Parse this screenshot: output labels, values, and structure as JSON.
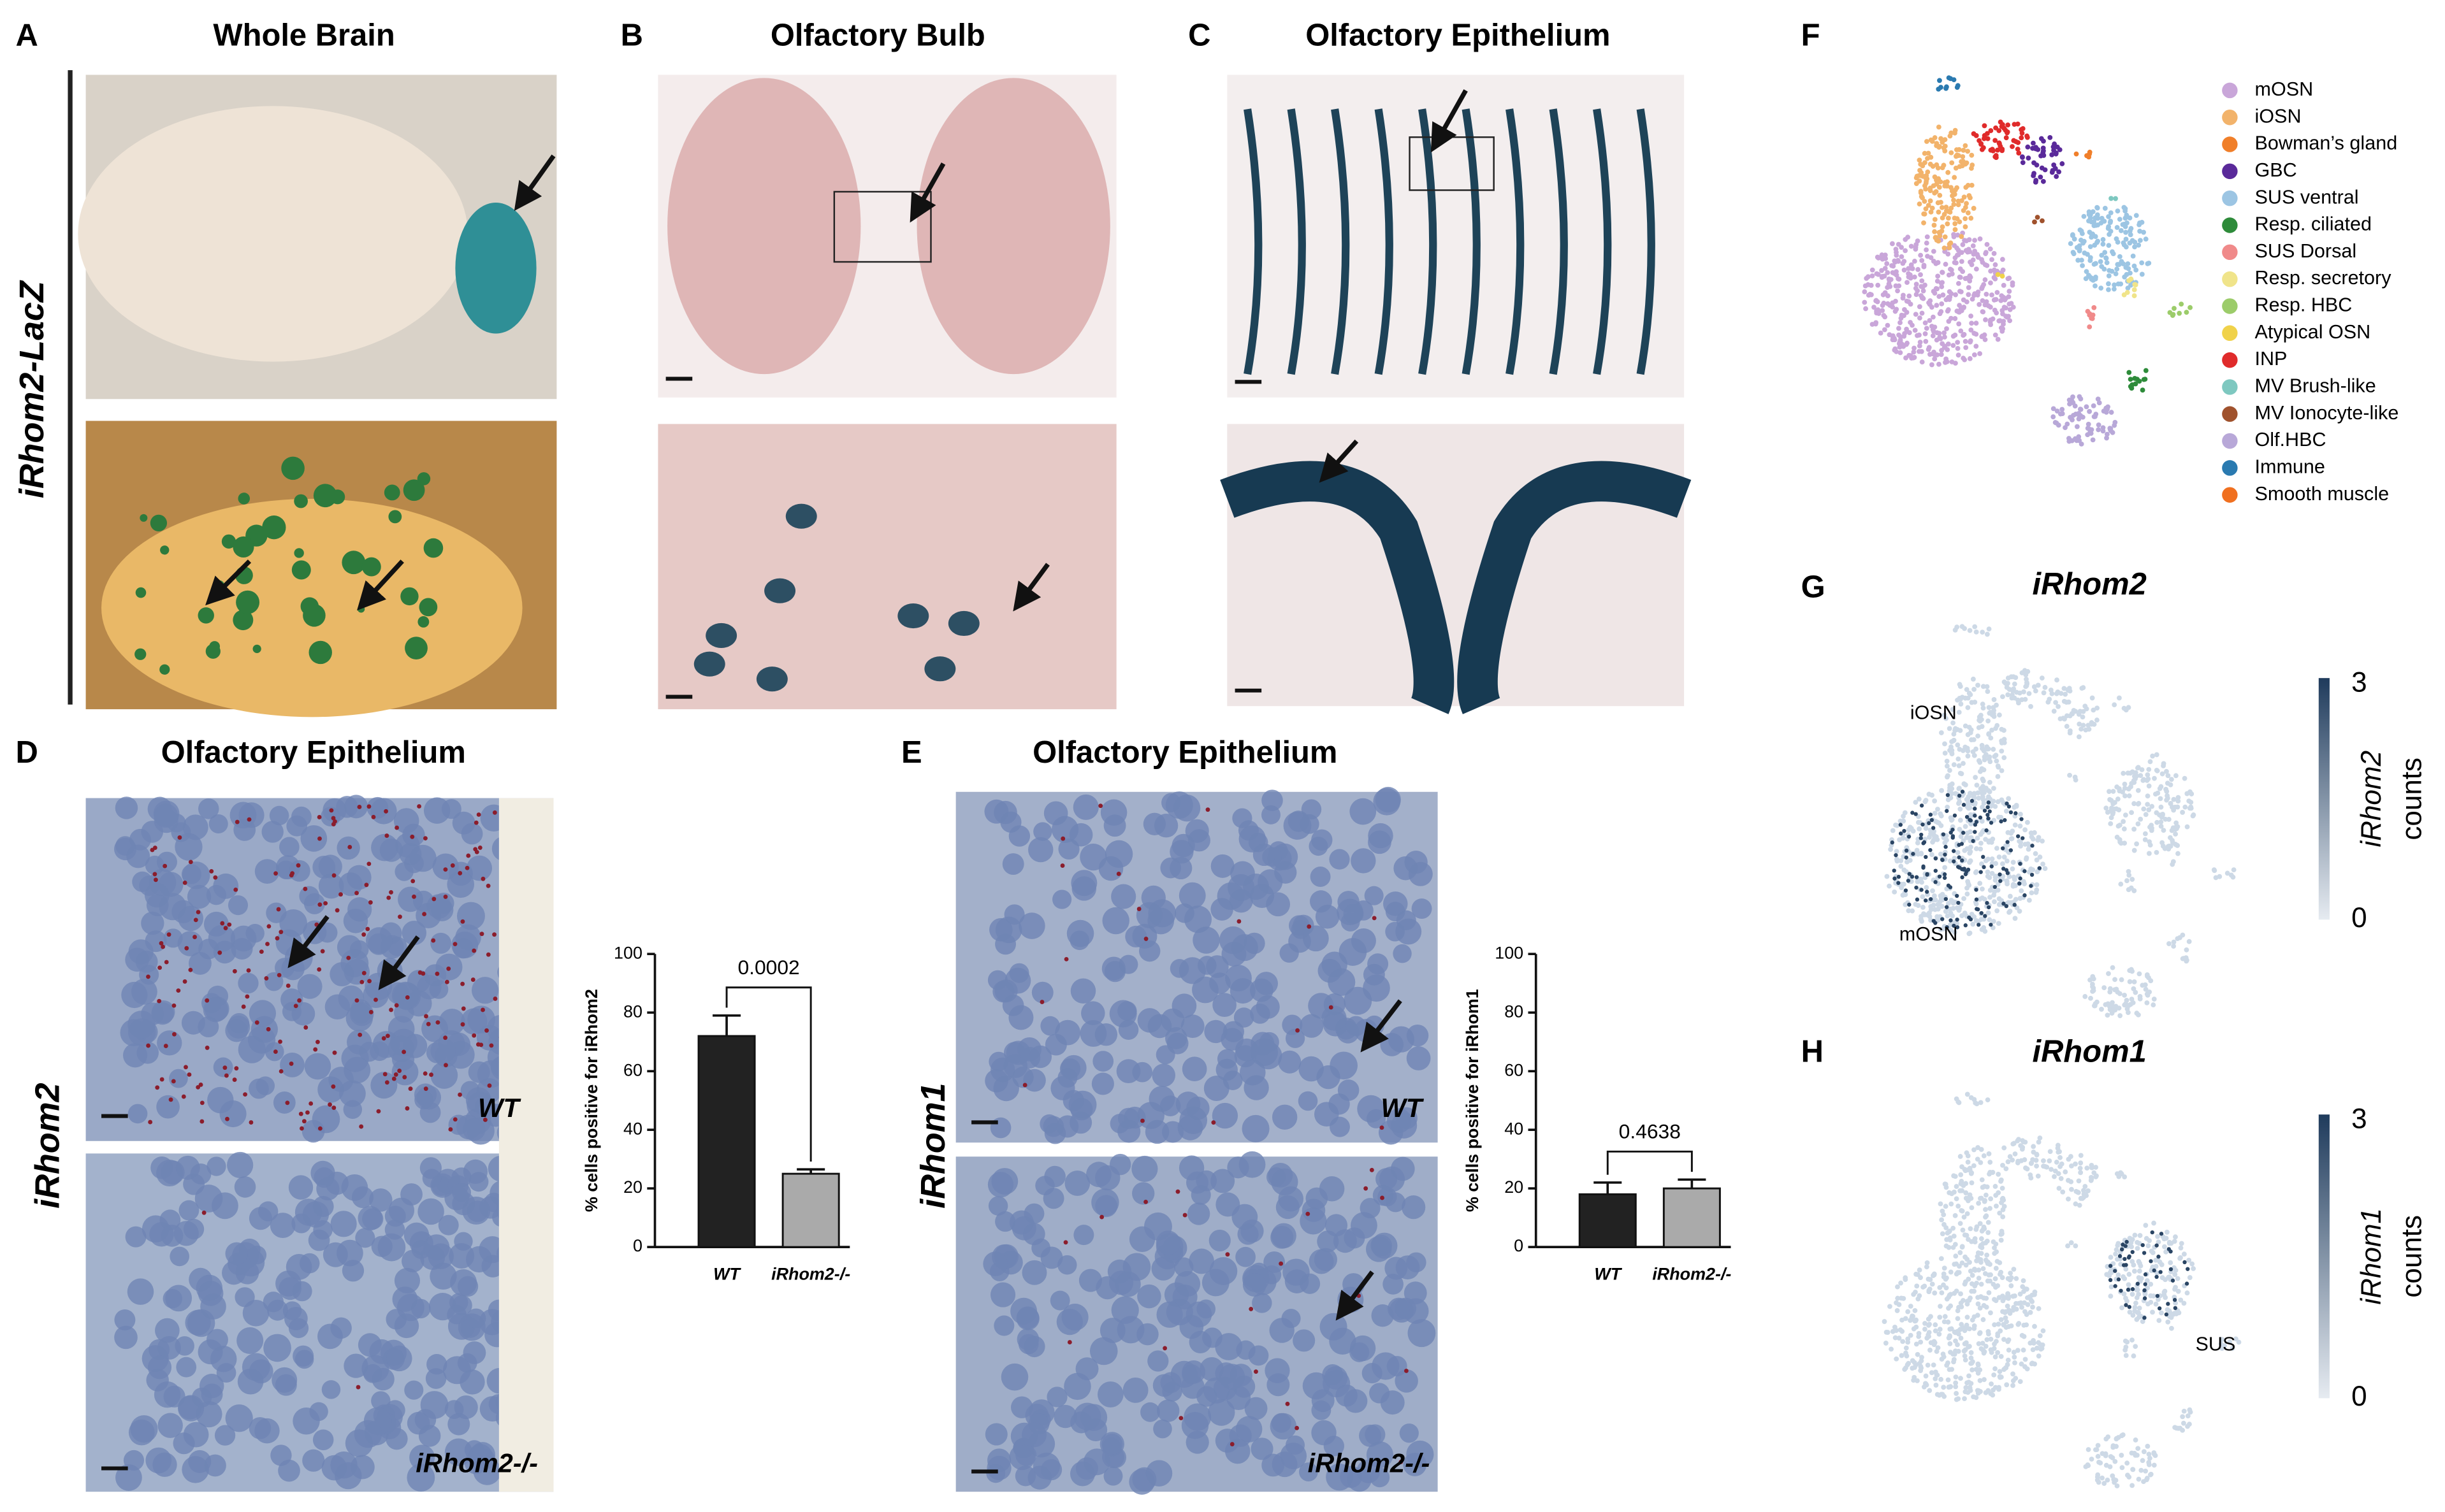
{
  "panel_labels": [
    "A",
    "B",
    "C",
    "D",
    "E",
    "F",
    "G",
    "H"
  ],
  "titles": {
    "A": "Whole Brain",
    "B": "Olfactory Bulb",
    "C": "Olfactory Epithelium",
    "D": "Olfactory Epithelium",
    "E": "Olfactory Epithelium",
    "G": "iRhom2",
    "H": "iRhom1"
  },
  "side_labels": [
    "iRhom2-LacZ",
    "iRhom2",
    "iRhom1"
  ],
  "image_labels": [
    "WT",
    "iRhom2-/-",
    "WT",
    "iRhom2-/-"
  ],
  "legend": [
    {
      "name": "mOSN",
      "color": "#c9a6d9"
    },
    {
      "name": "iOSN",
      "color": "#f2b36b"
    },
    {
      "name": "Bowman’s gland",
      "color": "#f07f2a"
    },
    {
      "name": "GBC",
      "color": "#5a2a9a"
    },
    {
      "name": "SUS ventral",
      "color": "#9cc5e3"
    },
    {
      "name": "Resp. ciliated",
      "color": "#2e8b3a"
    },
    {
      "name": "SUS Dorsal",
      "color": "#f08a8a"
    },
    {
      "name": "Resp. secretory",
      "color": "#f0e48a"
    },
    {
      "name": "Resp. HBC",
      "color": "#9ccc6a"
    },
    {
      "name": "Atypical OSN",
      "color": "#f0d24a"
    },
    {
      "name": "INP",
      "color": "#e02b2b"
    },
    {
      "name": "MV Brush-like",
      "color": "#7ec8c0"
    },
    {
      "name": "MV Ionocyte-like",
      "color": "#a0522d"
    },
    {
      "name": "Olf.HBC",
      "color": "#b8a8d8"
    },
    {
      "name": "Immune",
      "color": "#2a7ab0"
    },
    {
      "name": "Smooth muscle",
      "color": "#f07020"
    }
  ],
  "umap_labels": [
    "iOSN",
    "mOSN",
    "SUS"
  ],
  "colorbars": [
    {
      "max": "3",
      "min": "0",
      "gene": "iRhom2",
      "unit": "counts"
    },
    {
      "max": "3",
      "min": "0",
      "gene": "iRhom1",
      "unit": "counts"
    }
  ],
  "chart_data": [
    {
      "type": "bar",
      "ylabel": "% cells positive for iRhom2",
      "categories": [
        "WT",
        "iRhom2-/-"
      ],
      "values": [
        72,
        25
      ],
      "errors": [
        7,
        1.5
      ],
      "colors": [
        "#222222",
        "#aaaaaa"
      ],
      "ylim": [
        0,
        100
      ],
      "yticks": [
        0,
        20,
        40,
        60,
        80,
        100
      ],
      "annotation": "0.0002"
    },
    {
      "type": "bar",
      "ylabel": "% cells positive for iRhom1",
      "categories": [
        "WT",
        "iRhom2-/-"
      ],
      "values": [
        18,
        20
      ],
      "errors": [
        4,
        3
      ],
      "colors": [
        "#222222",
        "#aaaaaa"
      ],
      "ylim": [
        0,
        100
      ],
      "yticks": [
        0,
        20,
        40,
        60,
        80,
        100
      ],
      "annotation": "0.4638"
    }
  ]
}
